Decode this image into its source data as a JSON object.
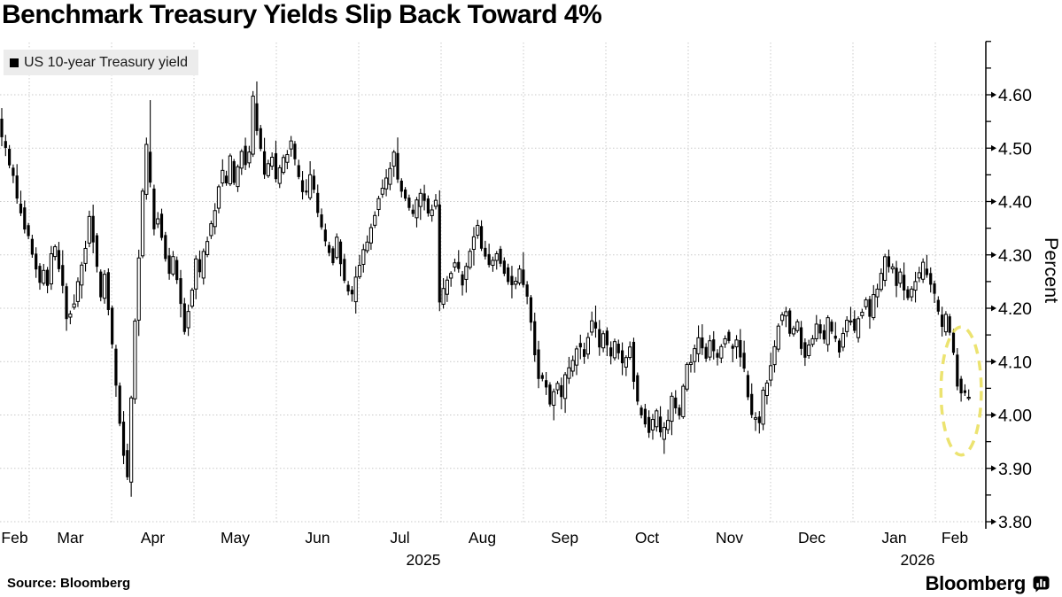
{
  "header": {
    "title": "Benchmark Treasury Yields Slip Back Toward 4%"
  },
  "legend": {
    "label": "US 10-year Treasury yield",
    "swatch_color": "#000000"
  },
  "footer": {
    "source": "Source: Bloomberg",
    "brand": "Bloomberg"
  },
  "chart_data": {
    "type": "candlestick",
    "series": [
      {
        "name": "US 10-year Treasury yield"
      }
    ],
    "title": "Benchmark Treasury Yields Slip Back Toward 4%",
    "xlabel": "",
    "ylabel": "Percent",
    "y_axis": {
      "label": "Percent",
      "min": 3.8,
      "max": 4.6,
      "tick_step": 0.1,
      "minor_step": 0.05,
      "axis_top_value": 4.7,
      "tick_labels": [
        "3.80",
        "3.90",
        "4.00",
        "4.10",
        "4.20",
        "4.30",
        "4.40",
        "4.50",
        "4.60"
      ]
    },
    "x_axis": {
      "month_labels": [
        "Feb",
        "Mar",
        "Apr",
        "May",
        "Jun",
        "Jul",
        "Aug",
        "Sep",
        "Oct",
        "Nov",
        "Dec",
        "Jan",
        "Feb"
      ],
      "year_labels": [
        {
          "label": "2025",
          "month_index": 5
        },
        {
          "label": "2026",
          "month_index": 11
        }
      ]
    },
    "time_span": {
      "start": "Feb 2025",
      "end": "Feb 2026",
      "trading_days": 256
    },
    "sampling_note": "daily candles; values estimated from gridlines at ~2-day anchor resolution",
    "anchors": [
      [
        0,
        4.555
      ],
      [
        1,
        4.52
      ],
      [
        2,
        4.5
      ],
      [
        3,
        4.465
      ],
      [
        4,
        4.45
      ],
      [
        5,
        4.4
      ],
      [
        6,
        4.385
      ],
      [
        7,
        4.35
      ],
      [
        8,
        4.33
      ],
      [
        9,
        4.3
      ],
      [
        10,
        4.28
      ],
      [
        11,
        4.25
      ],
      [
        12,
        4.27
      ],
      [
        13,
        4.24
      ],
      [
        14,
        4.3
      ],
      [
        15,
        4.315
      ],
      [
        16,
        4.28
      ],
      [
        17,
        4.24
      ],
      [
        18,
        4.18
      ],
      [
        20,
        4.21
      ],
      [
        21,
        4.25
      ],
      [
        22,
        4.28
      ],
      [
        23,
        4.32
      ],
      [
        24,
        4.38
      ],
      [
        25,
        4.33
      ],
      [
        26,
        4.27
      ],
      [
        27,
        4.22
      ],
      [
        28,
        4.26
      ],
      [
        29,
        4.2
      ],
      [
        30,
        4.13
      ],
      [
        31,
        4.05
      ],
      [
        32,
        3.99
      ],
      [
        33,
        3.93
      ],
      [
        34,
        3.88
      ],
      [
        35,
        4.03
      ],
      [
        36,
        4.17
      ],
      [
        37,
        4.3
      ],
      [
        38,
        4.42
      ],
      [
        39,
        4.5
      ],
      [
        40,
        4.43
      ],
      [
        41,
        4.35
      ],
      [
        42,
        4.37
      ],
      [
        44,
        4.3
      ],
      [
        45,
        4.26
      ],
      [
        46,
        4.29
      ],
      [
        48,
        4.21
      ],
      [
        49,
        4.16
      ],
      [
        50,
        4.2
      ],
      [
        51,
        4.24
      ],
      [
        52,
        4.29
      ],
      [
        53,
        4.26
      ],
      [
        54,
        4.3
      ],
      [
        55,
        4.33
      ],
      [
        56,
        4.36
      ],
      [
        57,
        4.39
      ],
      [
        58,
        4.43
      ],
      [
        59,
        4.455
      ],
      [
        60,
        4.44
      ],
      [
        61,
        4.48
      ],
      [
        62,
        4.43
      ],
      [
        63,
        4.465
      ],
      [
        64,
        4.5
      ],
      [
        65,
        4.47
      ],
      [
        66,
        4.49
      ],
      [
        67,
        4.59
      ],
      [
        68,
        4.53
      ],
      [
        69,
        4.5
      ],
      [
        70,
        4.45
      ],
      [
        71,
        4.47
      ],
      [
        72,
        4.49
      ],
      [
        73,
        4.44
      ],
      [
        75,
        4.48
      ],
      [
        77,
        4.51
      ],
      [
        79,
        4.44
      ],
      [
        81,
        4.41
      ],
      [
        82,
        4.45
      ],
      [
        84,
        4.38
      ],
      [
        86,
        4.32
      ],
      [
        88,
        4.29
      ],
      [
        89,
        4.33
      ],
      [
        91,
        4.25
      ],
      [
        93,
        4.22
      ],
      [
        94,
        4.26
      ],
      [
        96,
        4.31
      ],
      [
        98,
        4.35
      ],
      [
        100,
        4.41
      ],
      [
        102,
        4.44
      ],
      [
        104,
        4.49
      ],
      [
        105,
        4.44
      ],
      [
        107,
        4.4
      ],
      [
        109,
        4.37
      ],
      [
        111,
        4.42
      ],
      [
        113,
        4.38
      ],
      [
        115,
        4.4
      ],
      [
        116,
        4.21
      ],
      [
        118,
        4.25
      ],
      [
        120,
        4.29
      ],
      [
        122,
        4.25
      ],
      [
        124,
        4.31
      ],
      [
        125,
        4.34
      ],
      [
        126,
        4.35
      ],
      [
        127,
        4.31
      ],
      [
        129,
        4.28
      ],
      [
        131,
        4.31
      ],
      [
        133,
        4.27
      ],
      [
        135,
        4.24
      ],
      [
        137,
        4.27
      ],
      [
        138,
        4.25
      ],
      [
        140,
        4.18
      ],
      [
        141,
        4.12
      ],
      [
        142,
        4.07
      ],
      [
        144,
        4.05
      ],
      [
        145,
        4.02
      ],
      [
        147,
        4.06
      ],
      [
        148,
        4.03
      ],
      [
        149,
        4.07
      ],
      [
        151,
        4.1
      ],
      [
        152,
        4.13
      ],
      [
        154,
        4.11
      ],
      [
        155,
        4.15
      ],
      [
        156,
        4.18
      ],
      [
        158,
        4.13
      ],
      [
        159,
        4.15
      ],
      [
        161,
        4.11
      ],
      [
        162,
        4.14
      ],
      [
        164,
        4.09
      ],
      [
        166,
        4.13
      ],
      [
        167,
        4.07
      ],
      [
        168,
        4.02
      ],
      [
        170,
        3.99
      ],
      [
        171,
        3.97
      ],
      [
        173,
        4.0
      ],
      [
        174,
        3.96
      ],
      [
        176,
        3.99
      ],
      [
        177,
        4.03
      ],
      [
        179,
        4.0
      ],
      [
        180,
        4.05
      ],
      [
        181,
        4.09
      ],
      [
        183,
        4.12
      ],
      [
        184,
        4.15
      ],
      [
        186,
        4.11
      ],
      [
        187,
        4.14
      ],
      [
        189,
        4.1
      ],
      [
        190,
        4.13
      ],
      [
        191,
        4.15
      ],
      [
        193,
        4.12
      ],
      [
        194,
        4.14
      ],
      [
        196,
        4.08
      ],
      [
        197,
        4.04
      ],
      [
        198,
        4.0
      ],
      [
        200,
        3.99
      ],
      [
        201,
        4.04
      ],
      [
        203,
        4.09
      ],
      [
        204,
        4.13
      ],
      [
        205,
        4.17
      ],
      [
        207,
        4.19
      ],
      [
        208,
        4.15
      ],
      [
        210,
        4.17
      ],
      [
        211,
        4.13
      ],
      [
        212,
        4.11
      ],
      [
        214,
        4.14
      ],
      [
        215,
        4.17
      ],
      [
        217,
        4.14
      ],
      [
        218,
        4.18
      ],
      [
        219,
        4.15
      ],
      [
        221,
        4.12
      ],
      [
        222,
        4.16
      ],
      [
        224,
        4.18
      ],
      [
        225,
        4.15
      ],
      [
        226,
        4.18
      ],
      [
        228,
        4.21
      ],
      [
        229,
        4.18
      ],
      [
        230,
        4.22
      ],
      [
        232,
        4.26
      ],
      [
        233,
        4.29
      ],
      [
        235,
        4.27
      ],
      [
        236,
        4.24
      ],
      [
        237,
        4.26
      ],
      [
        239,
        4.22
      ],
      [
        240,
        4.24
      ],
      [
        242,
        4.26
      ],
      [
        243,
        4.28
      ],
      [
        244,
        4.26
      ],
      [
        246,
        4.22
      ],
      [
        247,
        4.19
      ],
      [
        248,
        4.16
      ],
      [
        249,
        4.185
      ],
      [
        250,
        4.15
      ],
      [
        251,
        4.11
      ],
      [
        252,
        4.06
      ],
      [
        253,
        4.04
      ],
      [
        254,
        4.035
      ],
      [
        255,
        4.03
      ]
    ],
    "spikes": [
      {
        "day": 0,
        "high": 4.575
      },
      {
        "day": 34,
        "low": 3.86
      },
      {
        "day": 39,
        "high": 4.59
      },
      {
        "day": 67,
        "high": 4.625
      },
      {
        "day": 93,
        "low": 4.19
      },
      {
        "day": 104,
        "high": 4.52
      },
      {
        "day": 137,
        "high": 4.305
      },
      {
        "day": 145,
        "low": 3.99
      },
      {
        "day": 156,
        "high": 4.205
      },
      {
        "day": 174,
        "low": 3.935
      },
      {
        "day": 184,
        "high": 4.17
      },
      {
        "day": 198,
        "low": 3.97
      },
      {
        "day": 233,
        "high": 4.31
      },
      {
        "day": 243,
        "high": 4.3
      }
    ],
    "key_points": {
      "start_value": 4.55,
      "april_low": 3.86,
      "april_spike_high": 4.59,
      "may_peak": 4.62,
      "october_low": 3.94,
      "january_high": 4.31,
      "last_value": 4.03
    },
    "annotation": {
      "shape": "dashed-ellipse",
      "color": "#e9de57",
      "center_day": 252,
      "center_value": 4.045,
      "radius_days": 5.3,
      "radius_value": 0.12
    },
    "noise_seed": 11,
    "noise_amplitude": 0.016,
    "legend_position": "top-left",
    "grid": true,
    "colors": {
      "up_candle": "#ffffff",
      "down_candle": "#000000",
      "wick": "#000000",
      "grid": "#c9c9c9",
      "axis": "#000000",
      "legend_bg": "#ececec"
    }
  }
}
